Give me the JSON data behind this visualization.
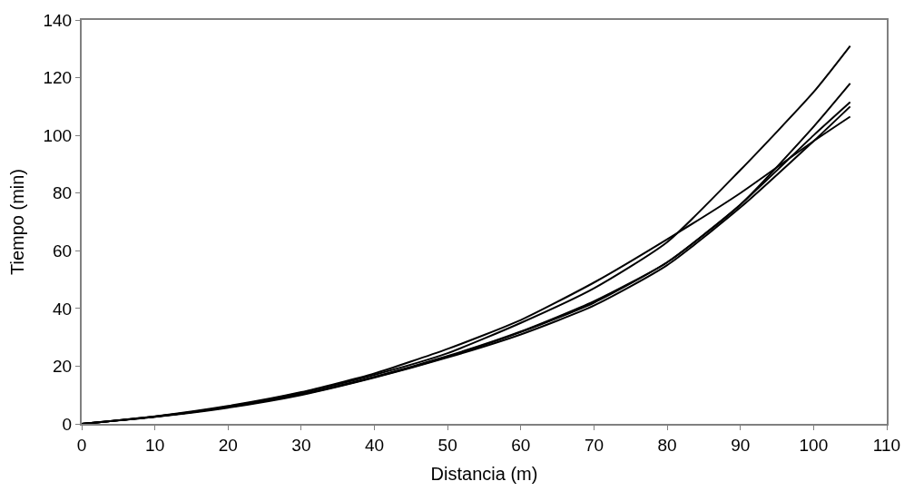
{
  "chart_data": {
    "type": "line",
    "xlabel": "Distancia (m)",
    "ylabel": "Tiempo (min)",
    "x": [
      0,
      10,
      20,
      30,
      40,
      50,
      60,
      70,
      80,
      90,
      100,
      105
    ],
    "series": [
      {
        "color": "#000000",
        "values": [
          0,
          2.5,
          6,
          10.8,
          17,
          24.5,
          35,
          47,
          63,
          88,
          115,
          131
        ]
      },
      {
        "color": "#000000",
        "values": [
          0,
          2.5,
          5.8,
          10.3,
          16.3,
          23.5,
          32,
          42.5,
          56,
          76,
          103,
          118
        ]
      },
      {
        "color": "#000000",
        "values": [
          0,
          2.4,
          5.8,
          10.2,
          16.2,
          23.3,
          31.8,
          42,
          56,
          76,
          100,
          111.5
        ]
      },
      {
        "color": "#000000",
        "values": [
          0,
          2.4,
          5.6,
          10,
          16,
          23,
          31,
          41,
          55,
          75,
          98,
          110
        ]
      },
      {
        "color": "#000000",
        "values": [
          0,
          2.6,
          6.2,
          11,
          17.5,
          26,
          36,
          49,
          64,
          80,
          98,
          106.5
        ]
      }
    ],
    "xlim": [
      0,
      110
    ],
    "xticks": [
      0,
      10,
      20,
      30,
      40,
      50,
      60,
      70,
      80,
      90,
      100,
      110
    ],
    "ylim": [
      0,
      140
    ],
    "yticks": [
      0,
      20,
      40,
      60,
      80,
      100,
      120,
      140
    ],
    "marker": "none",
    "line_style": "solid"
  }
}
